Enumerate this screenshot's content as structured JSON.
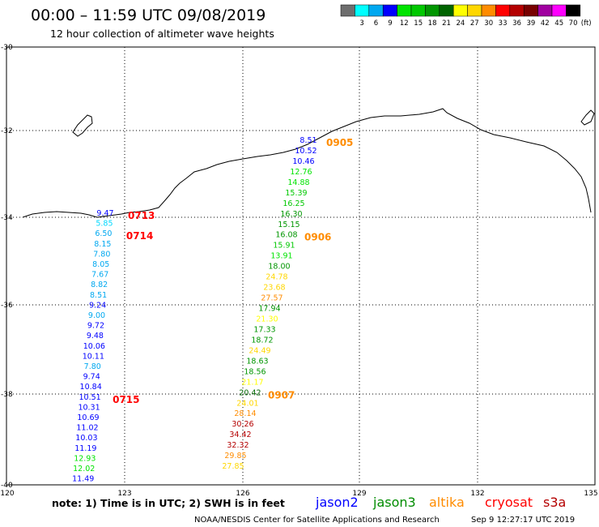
{
  "header": {
    "title": "00:00 – 11:59 UTC 09/08/2019",
    "subtitle": "12 hour collection of altimeter wave heights"
  },
  "legend": {
    "swatches": [
      {
        "color": "#6e6e6e",
        "label": ""
      },
      {
        "color": "#00ffff",
        "label": "3"
      },
      {
        "color": "#00a8f0",
        "label": "6"
      },
      {
        "color": "#0000ff",
        "label": "9"
      },
      {
        "color": "#00e400",
        "label": "12"
      },
      {
        "color": "#00c800",
        "label": "15"
      },
      {
        "color": "#009600",
        "label": "18"
      },
      {
        "color": "#006400",
        "label": "21"
      },
      {
        "color": "#ffff00",
        "label": "24"
      },
      {
        "color": "#ffd700",
        "label": "27"
      },
      {
        "color": "#ff8c00",
        "label": "30"
      },
      {
        "color": "#ff0000",
        "label": "33"
      },
      {
        "color": "#b40000",
        "label": "36"
      },
      {
        "color": "#780000",
        "label": "39"
      },
      {
        "color": "#a000a0",
        "label": "42"
      },
      {
        "color": "#ff00ff",
        "label": "45"
      },
      {
        "color": "#000000",
        "label": "70"
      }
    ],
    "unit": "(ft)"
  },
  "axes": {
    "lon_labels": [
      "120",
      "123",
      "126",
      "129",
      "132",
      "135"
    ],
    "lat_labels": [
      "-30",
      "-32",
      "-34",
      "-36",
      "-38",
      "-40"
    ]
  },
  "tracks": {
    "track_west": {
      "values": [
        "9.47",
        "5.85",
        "6.50",
        "8.15",
        "7.80",
        "8.05",
        "7.67",
        "8.82",
        "8.51",
        "9.24",
        "9.00",
        "9.72",
        "9.48",
        "10.06",
        "10.11",
        "7.80",
        "9.74",
        "10.84",
        "10.51",
        "10.31",
        "10.69",
        "11.02",
        "10.03",
        "11.19",
        "12.93",
        "12.02",
        "11.49"
      ],
      "colors": [
        "#0000ff",
        "#00d8ff",
        "#00a8f0",
        "#00a8f0",
        "#00a8f0",
        "#00a8f0",
        "#00a8f0",
        "#00a8f0",
        "#00a8f0",
        "#0000ff",
        "#00a8f0",
        "#0000ff",
        "#0000ff",
        "#0000ff",
        "#0000ff",
        "#00a8f0",
        "#0000ff",
        "#0000ff",
        "#0000ff",
        "#0000ff",
        "#0000ff",
        "#0000ff",
        "#0000ff",
        "#0000ff",
        "#00e400",
        "#00e400",
        "#0000ff"
      ],
      "times": [
        {
          "label": "0713",
          "color": "#ff0000",
          "after_index": 0
        },
        {
          "label": "0714",
          "color": "#ff0000",
          "after_index": 2
        },
        {
          "label": "0715",
          "color": "#ff0000",
          "after_index": 18
        }
      ]
    },
    "track_east": {
      "values": [
        "8.51",
        "10.52",
        "10.46",
        "12.76",
        "14.88",
        "15.39",
        "16.25",
        "16.30",
        "15.15",
        "16.08",
        "15.91",
        "13.91",
        "18.00",
        "24.78",
        "23.68",
        "27.57",
        "17.94",
        "21.30",
        "17.33",
        "18.72",
        "24.49",
        "18.63",
        "18.56",
        "21.17",
        "20.42",
        "24.01",
        "28.14",
        "30.26",
        "34.42",
        "32.32",
        "29.85",
        "27.85"
      ],
      "colors": [
        "#0000ff",
        "#0000ff",
        "#0000ff",
        "#00e400",
        "#00e400",
        "#00c800",
        "#00c800",
        "#009600",
        "#009600",
        "#009600",
        "#00c800",
        "#00e400",
        "#009600",
        "#ffd700",
        "#ffd700",
        "#ff8c00",
        "#009600",
        "#ffff00",
        "#009600",
        "#009600",
        "#ffd700",
        "#009600",
        "#009600",
        "#ffff00",
        "#006400",
        "#ffd700",
        "#ff8c00",
        "#b40000",
        "#b40000",
        "#b40000",
        "#ff8c00",
        "#ffd700"
      ],
      "times": [
        {
          "label": "0905",
          "color": "#ff8c00",
          "after_index": 0
        },
        {
          "label": "0906",
          "color": "#ff8c00",
          "after_index": 9
        },
        {
          "label": "0907",
          "color": "#ff8c00",
          "after_index": 24
        }
      ]
    }
  },
  "footer": {
    "note": "note: 1) Time is in UTC; 2) SWH is in feet",
    "satellites": [
      {
        "name": "jason2",
        "color": "#0000ff"
      },
      {
        "name": "jason3",
        "color": "#008c00"
      },
      {
        "name": "altika",
        "color": "#ff8c00"
      },
      {
        "name": "cryosat",
        "color": "#ff0000"
      },
      {
        "name": "s3a",
        "color": "#b40000"
      }
    ],
    "credit": "NOAA/NESDIS Center for Satellite Applications and Research",
    "generated": "Sep  9 12:27:17 UTC 2019"
  }
}
